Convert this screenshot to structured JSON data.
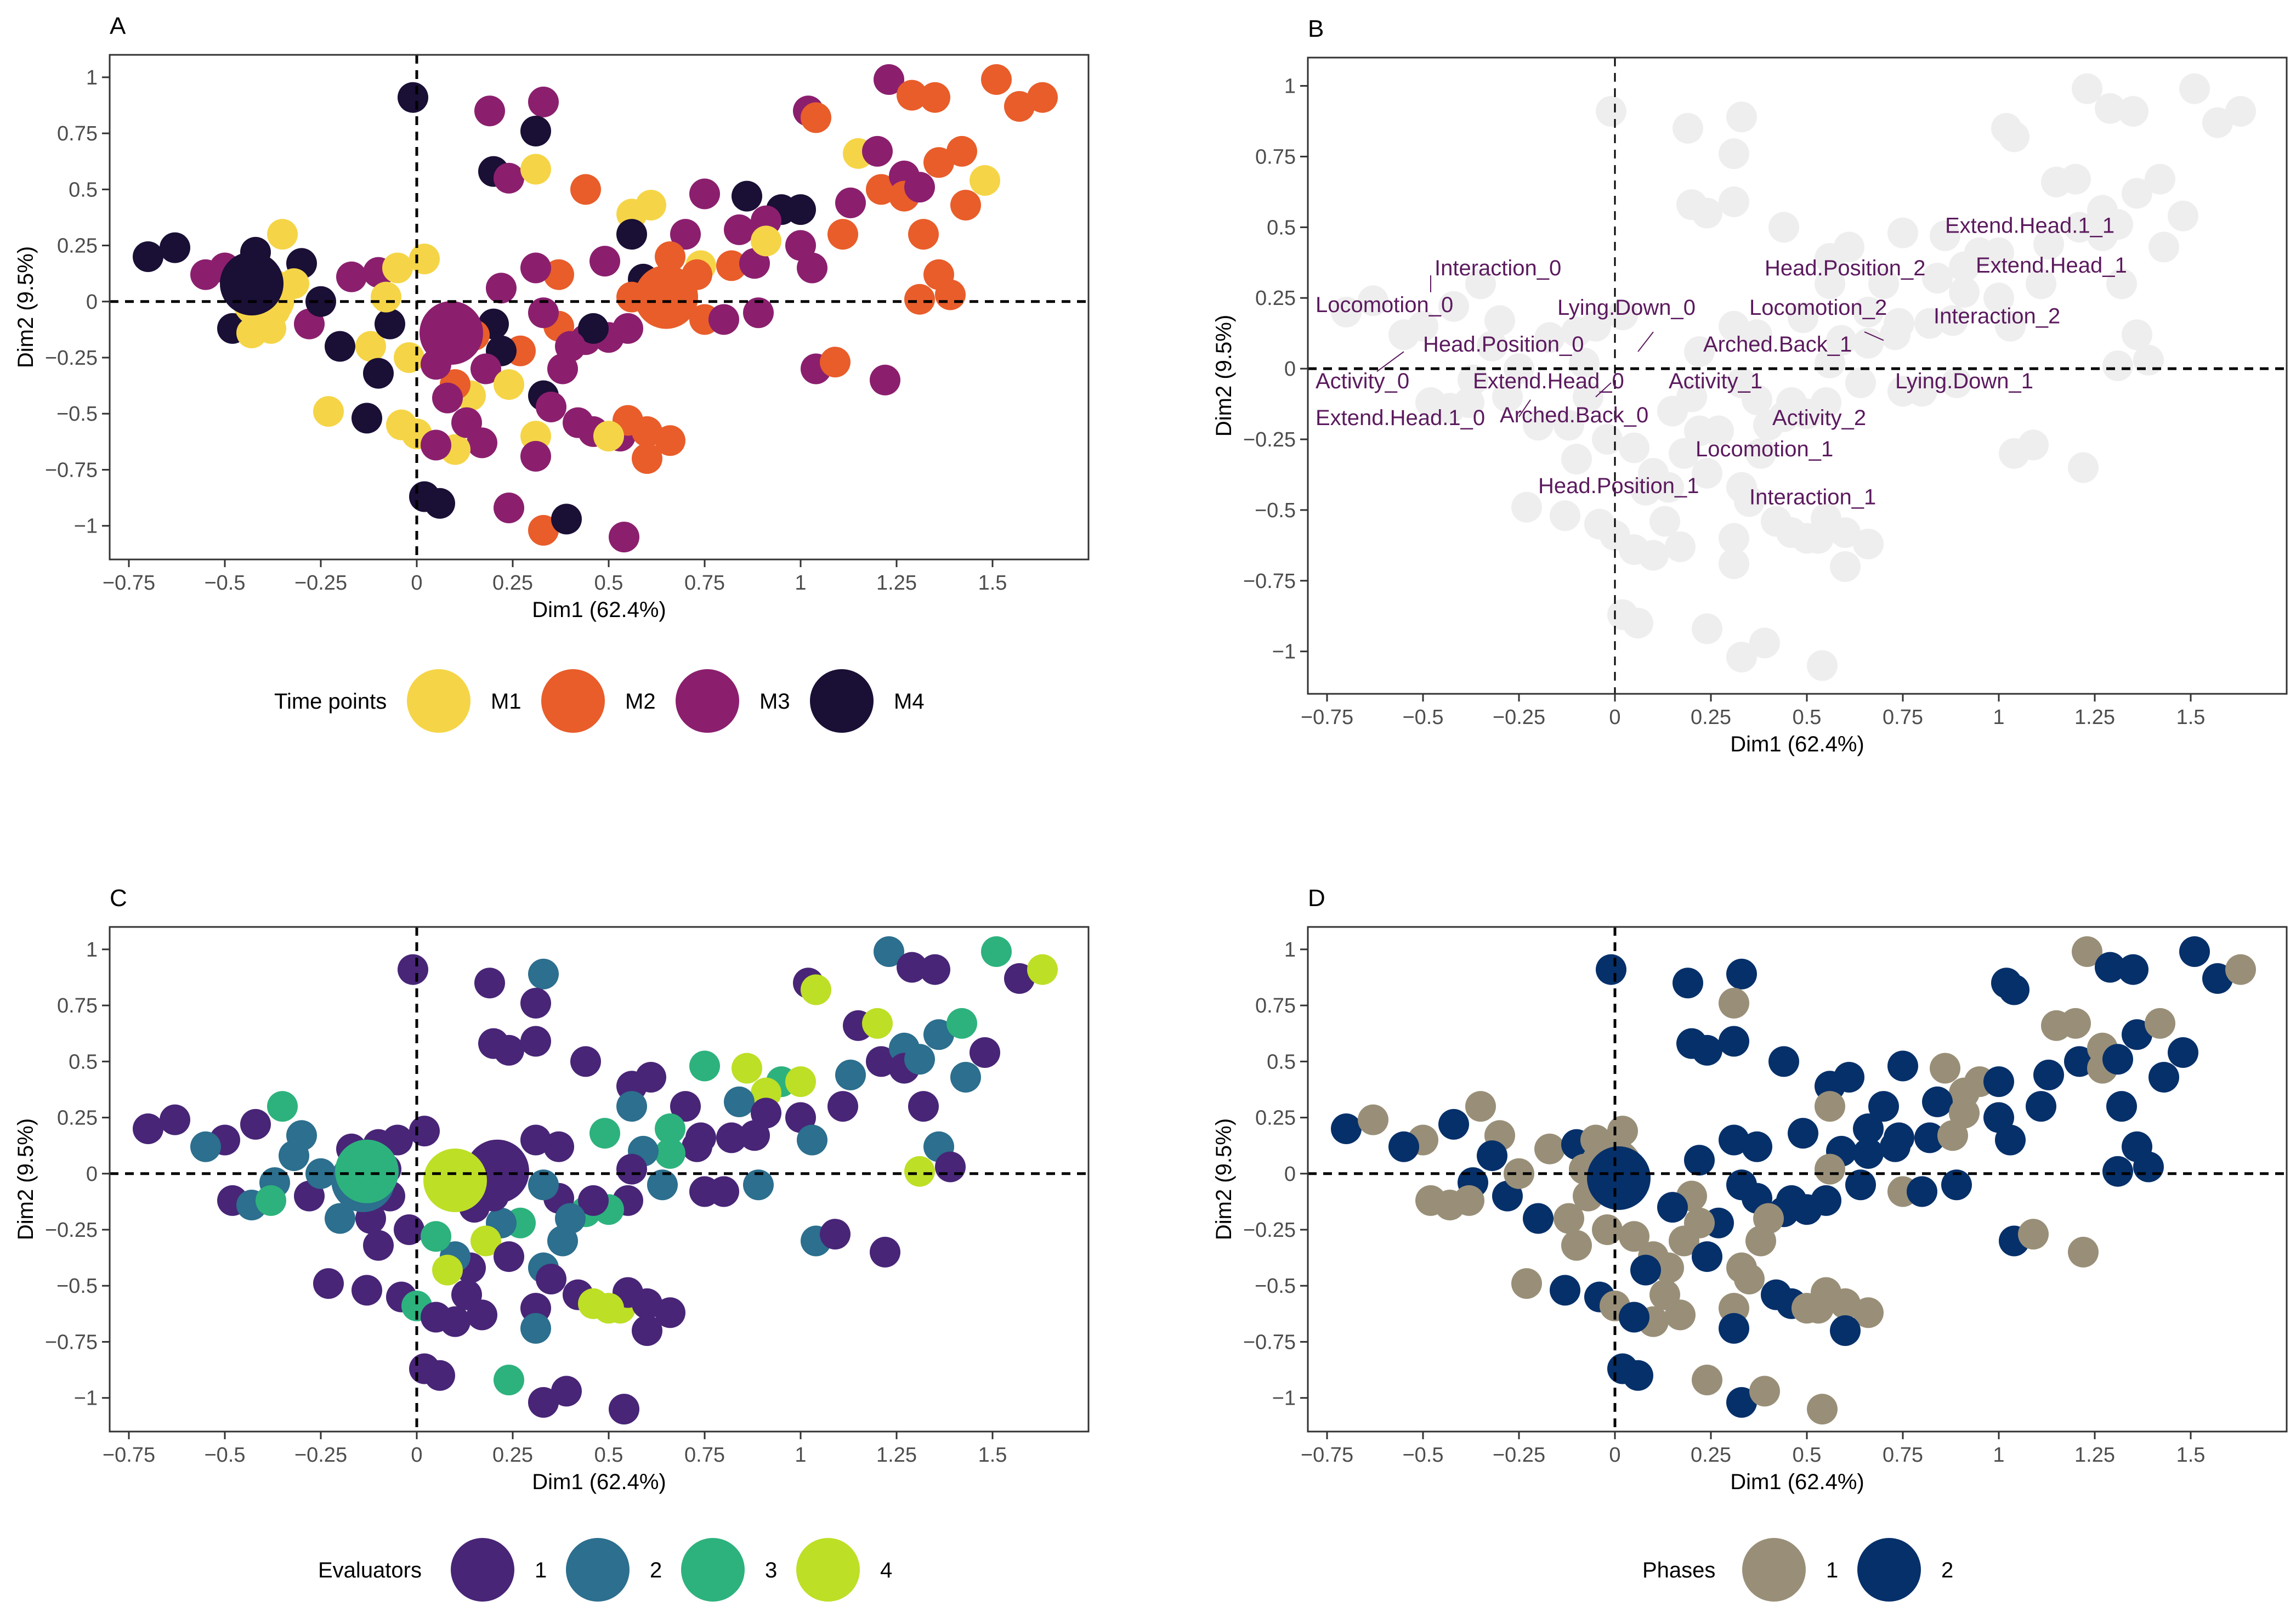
{
  "chart_data": [
    {
      "panel_letter": "A",
      "type": "scatter",
      "xlabel": "Dim1 (62.4%)",
      "ylabel": "Dim2 (9.5%)",
      "xlim": [
        -0.8,
        1.75
      ],
      "ylim": [
        -1.15,
        1.1
      ],
      "xticks": [
        -0.75,
        -0.5,
        -0.25,
        0,
        0.25,
        0.5,
        0.75,
        1,
        1.25,
        1.5
      ],
      "xtick_labels": [
        "−0.75",
        "−0.5",
        "−0.25",
        "0",
        "0.25",
        "0.5",
        "0.75",
        "1",
        "1.25",
        "1.5"
      ],
      "yticks": [
        -1,
        -0.75,
        -0.5,
        -0.25,
        0,
        0.25,
        0.5,
        0.75,
        1
      ],
      "ytick_labels": [
        "−1",
        "−0.75",
        "−0.5",
        "−0.25",
        "0",
        "0.25",
        "0.5",
        "0.75",
        "1"
      ],
      "legend": {
        "title": "Time points",
        "entries": [
          {
            "label": "M1",
            "color": "#f5d547"
          },
          {
            "label": "M2",
            "color": "#e85d2a"
          },
          {
            "label": "M3",
            "color": "#8b1f6e"
          },
          {
            "label": "M4",
            "color": "#1a0f35"
          }
        ]
      },
      "centroids": [
        {
          "x": -0.4,
          "y": 0.02,
          "group": 1
        },
        {
          "x": 0.65,
          "y": 0.02,
          "group": 2
        },
        {
          "x": 0.09,
          "y": -0.14,
          "group": 3
        },
        {
          "x": -0.43,
          "y": 0.08,
          "group": 4
        }
      ],
      "points": [
        {
          "x": -0.7,
          "y": 0.2,
          "group": 4
        },
        {
          "x": -0.63,
          "y": 0.24,
          "group": 4
        },
        {
          "x": -0.5,
          "y": 0.15,
          "group": 3
        },
        {
          "x": -0.42,
          "y": 0.22,
          "group": 4
        },
        {
          "x": -0.35,
          "y": 0.3,
          "group": 1
        },
        {
          "x": -0.3,
          "y": 0.17,
          "group": 4
        },
        {
          "x": -0.32,
          "y": 0.08,
          "group": 1
        },
        {
          "x": -0.37,
          "y": -0.04,
          "group": 1
        },
        {
          "x": -0.48,
          "y": -0.12,
          "group": 4
        },
        {
          "x": -0.43,
          "y": -0.14,
          "group": 1
        },
        {
          "x": -0.38,
          "y": -0.12,
          "group": 1
        },
        {
          "x": -0.28,
          "y": -0.1,
          "group": 3
        },
        {
          "x": -0.2,
          "y": -0.2,
          "group": 4
        },
        {
          "x": -0.12,
          "y": -0.2,
          "group": 1
        },
        {
          "x": -0.07,
          "y": -0.1,
          "group": 4
        },
        {
          "x": -0.17,
          "y": 0.11,
          "group": 3
        },
        {
          "x": -0.1,
          "y": 0.13,
          "group": 3
        },
        {
          "x": -0.05,
          "y": 0.15,
          "group": 1
        },
        {
          "x": 0.02,
          "y": 0.19,
          "group": 1
        },
        {
          "x": -0.23,
          "y": -0.49,
          "group": 1
        },
        {
          "x": -0.13,
          "y": -0.52,
          "group": 4
        },
        {
          "x": -0.04,
          "y": -0.55,
          "group": 1
        },
        {
          "x": 0.0,
          "y": -0.59,
          "group": 1
        },
        {
          "x": 0.02,
          "y": -0.87,
          "group": 4
        },
        {
          "x": -0.01,
          "y": 0.91,
          "group": 4
        },
        {
          "x": 0.19,
          "y": 0.85,
          "group": 3
        },
        {
          "x": 0.33,
          "y": 0.89,
          "group": 3
        },
        {
          "x": 0.31,
          "y": 0.76,
          "group": 4
        },
        {
          "x": 0.2,
          "y": 0.58,
          "group": 4
        },
        {
          "x": 0.24,
          "y": 0.55,
          "group": 3
        },
        {
          "x": 0.31,
          "y": 0.59,
          "group": 1
        },
        {
          "x": 0.44,
          "y": 0.5,
          "group": 2
        },
        {
          "x": 0.56,
          "y": 0.39,
          "group": 1
        },
        {
          "x": 0.61,
          "y": 0.43,
          "group": 1
        },
        {
          "x": 0.56,
          "y": 0.3,
          "group": 4
        },
        {
          "x": 0.75,
          "y": 0.48,
          "group": 3
        },
        {
          "x": 0.86,
          "y": 0.47,
          "group": 4
        },
        {
          "x": 0.95,
          "y": 0.41,
          "group": 4
        },
        {
          "x": 0.91,
          "y": 0.36,
          "group": 3
        },
        {
          "x": 1.0,
          "y": 0.41,
          "group": 4
        },
        {
          "x": 0.84,
          "y": 0.32,
          "group": 3
        },
        {
          "x": 0.7,
          "y": 0.3,
          "group": 3
        },
        {
          "x": 0.66,
          "y": 0.2,
          "group": 2
        },
        {
          "x": 0.74,
          "y": 0.16,
          "group": 1
        },
        {
          "x": 0.82,
          "y": 0.16,
          "group": 2
        },
        {
          "x": 0.88,
          "y": 0.17,
          "group": 3
        },
        {
          "x": 0.91,
          "y": 0.27,
          "group": 1
        },
        {
          "x": 1.0,
          "y": 0.25,
          "group": 3
        },
        {
          "x": 1.03,
          "y": 0.15,
          "group": 3
        },
        {
          "x": 1.11,
          "y": 0.3,
          "group": 2
        },
        {
          "x": 1.13,
          "y": 0.44,
          "group": 3
        },
        {
          "x": 1.15,
          "y": 0.66,
          "group": 1
        },
        {
          "x": 1.2,
          "y": 0.67,
          "group": 3
        },
        {
          "x": 1.21,
          "y": 0.5,
          "group": 2
        },
        {
          "x": 1.27,
          "y": 0.56,
          "group": 3
        },
        {
          "x": 1.27,
          "y": 0.47,
          "group": 2
        },
        {
          "x": 1.31,
          "y": 0.51,
          "group": 3
        },
        {
          "x": 1.36,
          "y": 0.62,
          "group": 2
        },
        {
          "x": 1.42,
          "y": 0.67,
          "group": 2
        },
        {
          "x": 1.48,
          "y": 0.54,
          "group": 1
        },
        {
          "x": 1.43,
          "y": 0.43,
          "group": 2
        },
        {
          "x": 1.32,
          "y": 0.3,
          "group": 2
        },
        {
          "x": 1.36,
          "y": 0.12,
          "group": 2
        },
        {
          "x": 1.31,
          "y": 0.01,
          "group": 2
        },
        {
          "x": 1.39,
          "y": 0.03,
          "group": 2
        },
        {
          "x": 1.22,
          "y": -0.35,
          "group": 3
        },
        {
          "x": 1.04,
          "y": -0.3,
          "group": 3
        },
        {
          "x": 1.09,
          "y": -0.27,
          "group": 2
        },
        {
          "x": 1.02,
          "y": 0.85,
          "group": 3
        },
        {
          "x": 1.04,
          "y": 0.82,
          "group": 2
        },
        {
          "x": 1.23,
          "y": 0.99,
          "group": 3
        },
        {
          "x": 1.29,
          "y": 0.92,
          "group": 2
        },
        {
          "x": 1.35,
          "y": 0.91,
          "group": 2
        },
        {
          "x": 1.51,
          "y": 0.99,
          "group": 2
        },
        {
          "x": 1.57,
          "y": 0.87,
          "group": 2
        },
        {
          "x": 1.63,
          "y": 0.91,
          "group": 2
        },
        {
          "x": 0.73,
          "y": 0.12,
          "group": 2
        },
        {
          "x": 0.66,
          "y": 0.09,
          "group": 2
        },
        {
          "x": 0.59,
          "y": 0.1,
          "group": 4
        },
        {
          "x": 0.56,
          "y": 0.02,
          "group": 2
        },
        {
          "x": 0.64,
          "y": -0.05,
          "group": 2
        },
        {
          "x": 0.75,
          "y": -0.08,
          "group": 2
        },
        {
          "x": 0.8,
          "y": -0.08,
          "group": 3
        },
        {
          "x": 0.89,
          "y": -0.05,
          "group": 3
        },
        {
          "x": 0.55,
          "y": -0.12,
          "group": 3
        },
        {
          "x": 0.5,
          "y": -0.16,
          "group": 3
        },
        {
          "x": 0.44,
          "y": -0.17,
          "group": 3
        },
        {
          "x": 0.46,
          "y": -0.12,
          "group": 4
        },
        {
          "x": 0.37,
          "y": -0.11,
          "group": 2
        },
        {
          "x": 0.33,
          "y": -0.05,
          "group": 3
        },
        {
          "x": 0.37,
          "y": 0.12,
          "group": 2
        },
        {
          "x": 0.31,
          "y": 0.15,
          "group": 3
        },
        {
          "x": 0.22,
          "y": 0.06,
          "group": 3
        },
        {
          "x": 0.49,
          "y": 0.18,
          "group": 3
        },
        {
          "x": 0.4,
          "y": -0.2,
          "group": 3
        },
        {
          "x": 0.38,
          "y": -0.3,
          "group": 3
        },
        {
          "x": 0.27,
          "y": -0.22,
          "group": 2
        },
        {
          "x": 0.22,
          "y": -0.22,
          "group": 4
        },
        {
          "x": 0.18,
          "y": -0.3,
          "group": 3
        },
        {
          "x": 0.14,
          "y": -0.42,
          "group": 1
        },
        {
          "x": 0.1,
          "y": -0.37,
          "group": 2
        },
        {
          "x": 0.08,
          "y": -0.43,
          "group": 3
        },
        {
          "x": 0.24,
          "y": -0.37,
          "group": 1
        },
        {
          "x": 0.33,
          "y": -0.42,
          "group": 4
        },
        {
          "x": 0.35,
          "y": -0.47,
          "group": 3
        },
        {
          "x": 0.42,
          "y": -0.54,
          "group": 3
        },
        {
          "x": 0.46,
          "y": -0.58,
          "group": 3
        },
        {
          "x": 0.53,
          "y": -0.6,
          "group": 3
        },
        {
          "x": 0.55,
          "y": -0.53,
          "group": 2
        },
        {
          "x": 0.6,
          "y": -0.58,
          "group": 2
        },
        {
          "x": 0.66,
          "y": -0.62,
          "group": 2
        },
        {
          "x": 0.31,
          "y": -0.6,
          "group": 1
        },
        {
          "x": 0.31,
          "y": -0.69,
          "group": 3
        },
        {
          "x": 0.17,
          "y": -0.63,
          "group": 3
        },
        {
          "x": 0.1,
          "y": -0.66,
          "group": 1
        },
        {
          "x": 0.05,
          "y": -0.64,
          "group": 3
        },
        {
          "x": 0.13,
          "y": -0.54,
          "group": 3
        },
        {
          "x": 0.06,
          "y": -0.9,
          "group": 4
        },
        {
          "x": 0.24,
          "y": -0.92,
          "group": 3
        },
        {
          "x": 0.33,
          "y": -1.02,
          "group": 2
        },
        {
          "x": 0.39,
          "y": -0.97,
          "group": 4
        },
        {
          "x": 0.54,
          "y": -1.05,
          "group": 3
        },
        {
          "x": 0.6,
          "y": -0.7,
          "group": 2
        },
        {
          "x": 0.5,
          "y": -0.6,
          "group": 1
        },
        {
          "x": 0.2,
          "y": -0.1,
          "group": 4
        },
        {
          "x": 0.15,
          "y": -0.15,
          "group": 2
        },
        {
          "x": -0.02,
          "y": -0.25,
          "group": 1
        },
        {
          "x": 0.05,
          "y": -0.28,
          "group": 3
        },
        {
          "x": -0.1,
          "y": -0.32,
          "group": 4
        },
        {
          "x": -0.08,
          "y": 0.02,
          "group": 1
        },
        {
          "x": -0.25,
          "y": 0.0,
          "group": 4
        },
        {
          "x": -0.55,
          "y": 0.12,
          "group": 3
        }
      ]
    },
    {
      "panel_letter": "B",
      "type": "scatter",
      "xlabel": "Dim1 (62.4%)",
      "ylabel": "Dim2 (9.5%)",
      "xlim": [
        -0.8,
        1.75
      ],
      "ylim": [
        -1.15,
        1.1
      ],
      "xticks": [
        -0.75,
        -0.5,
        -0.25,
        0,
        0.25,
        0.5,
        0.75,
        1,
        1.25,
        1.5
      ],
      "xtick_labels": [
        "−0.75",
        "−0.5",
        "−0.25",
        "0",
        "0.25",
        "0.5",
        "0.75",
        "1",
        "1.25",
        "1.5"
      ],
      "yticks": [
        -1,
        -0.75,
        -0.5,
        -0.25,
        0,
        0.25,
        0.5,
        0.75,
        1
      ],
      "ytick_labels": [
        "−1",
        "−0.75",
        "−0.5",
        "−0.25",
        "0",
        "0.25",
        "0.5",
        "0.75",
        "1"
      ],
      "label_color": "#5b1a5e",
      "background_points_color": "#eeeeee",
      "category_labels": [
        {
          "label": "Extend.Head.1_1",
          "x": 0.86,
          "y": 0.48
        },
        {
          "label": "Extend.Head_1",
          "x": 0.94,
          "y": 0.34
        },
        {
          "label": "Head.Position_2",
          "x": 0.39,
          "y": 0.33
        },
        {
          "label": "Interaction_2",
          "x": 0.83,
          "y": 0.16
        },
        {
          "label": "Locomotion_2",
          "x": 0.35,
          "y": 0.19
        },
        {
          "label": "Interaction_0",
          "x": -0.47,
          "y": 0.33
        },
        {
          "label": "Locomotion_0",
          "x": -0.78,
          "y": 0.2
        },
        {
          "label": "Lying.Down_0",
          "x": -0.15,
          "y": 0.19
        },
        {
          "label": "Head.Position_0",
          "x": -0.5,
          "y": 0.06
        },
        {
          "label": "Arched.Back_1",
          "x": 0.23,
          "y": 0.06
        },
        {
          "label": "Activity_0",
          "x": -0.78,
          "y": -0.07
        },
        {
          "label": "Extend.Head_0",
          "x": -0.37,
          "y": -0.07
        },
        {
          "label": "Activity_1",
          "x": 0.14,
          "y": -0.07
        },
        {
          "label": "Lying.Down_1",
          "x": 0.73,
          "y": -0.07
        },
        {
          "label": "Extend.Head.1_0",
          "x": -0.78,
          "y": -0.2
        },
        {
          "label": "Arched.Back_0",
          "x": -0.3,
          "y": -0.19
        },
        {
          "label": "Activity_2",
          "x": 0.41,
          "y": -0.2
        },
        {
          "label": "Locomotion_1",
          "x": 0.21,
          "y": -0.31
        },
        {
          "label": "Head.Position_1",
          "x": -0.2,
          "y": -0.44
        },
        {
          "label": "Interaction_1",
          "x": 0.35,
          "y": -0.48
        }
      ]
    },
    {
      "panel_letter": "C",
      "type": "scatter",
      "xlabel": "Dim1 (62.4%)",
      "ylabel": "Dim2 (9.5%)",
      "xlim": [
        -0.8,
        1.75
      ],
      "ylim": [
        -1.15,
        1.1
      ],
      "xticks": [
        -0.75,
        -0.5,
        -0.25,
        0,
        0.25,
        0.5,
        0.75,
        1,
        1.25,
        1.5
      ],
      "xtick_labels": [
        "−0.75",
        "−0.5",
        "−0.25",
        "0",
        "0.25",
        "0.5",
        "0.75",
        "1",
        "1.25",
        "1.5"
      ],
      "yticks": [
        -1,
        -0.75,
        -0.5,
        -0.25,
        0,
        0.25,
        0.5,
        0.75,
        1
      ],
      "ytick_labels": [
        "−1",
        "−0.75",
        "−0.5",
        "−0.25",
        "0",
        "0.25",
        "0.5",
        "0.75",
        "1"
      ],
      "legend": {
        "title": "Evaluators",
        "entries": [
          {
            "label": "1",
            "color": "#482577"
          },
          {
            "label": "2",
            "color": "#2c6f8e"
          },
          {
            "label": "3",
            "color": "#2db27d"
          },
          {
            "label": "4",
            "color": "#bddf26"
          }
        ]
      },
      "centroids": [
        {
          "x": -0.14,
          "y": -0.03,
          "group": 2
        },
        {
          "x": -0.13,
          "y": 0.01,
          "group": 3
        },
        {
          "x": 0.21,
          "y": 0.01,
          "group": 1
        },
        {
          "x": 0.1,
          "y": -0.03,
          "group": 4
        }
      ]
    },
    {
      "panel_letter": "D",
      "type": "scatter",
      "xlabel": "Dim1 (62.4%)",
      "ylabel": "Dim2 (9.5%)",
      "xlim": [
        -0.8,
        1.75
      ],
      "ylim": [
        -1.15,
        1.1
      ],
      "xticks": [
        -0.75,
        -0.5,
        -0.25,
        0,
        0.25,
        0.5,
        0.75,
        1,
        1.25,
        1.5
      ],
      "xtick_labels": [
        "−0.75",
        "−0.5",
        "−0.25",
        "0",
        "0.25",
        "0.5",
        "0.75",
        "1",
        "1.25",
        "1.5"
      ],
      "yticks": [
        -1,
        -0.75,
        -0.5,
        -0.25,
        0,
        0.25,
        0.5,
        0.75,
        1
      ],
      "ytick_labels": [
        "−1",
        "−0.75",
        "−0.5",
        "−0.25",
        "0",
        "0.25",
        "0.5",
        "0.75",
        "1"
      ],
      "legend": {
        "title": "Phases",
        "entries": [
          {
            "label": "1",
            "color": "#998f78"
          },
          {
            "label": "2",
            "color": "#06306a"
          }
        ]
      },
      "centroids": [
        {
          "x": -0.01,
          "y": 0.02,
          "group": 1
        },
        {
          "x": 0.01,
          "y": -0.02,
          "group": 2
        }
      ]
    }
  ]
}
